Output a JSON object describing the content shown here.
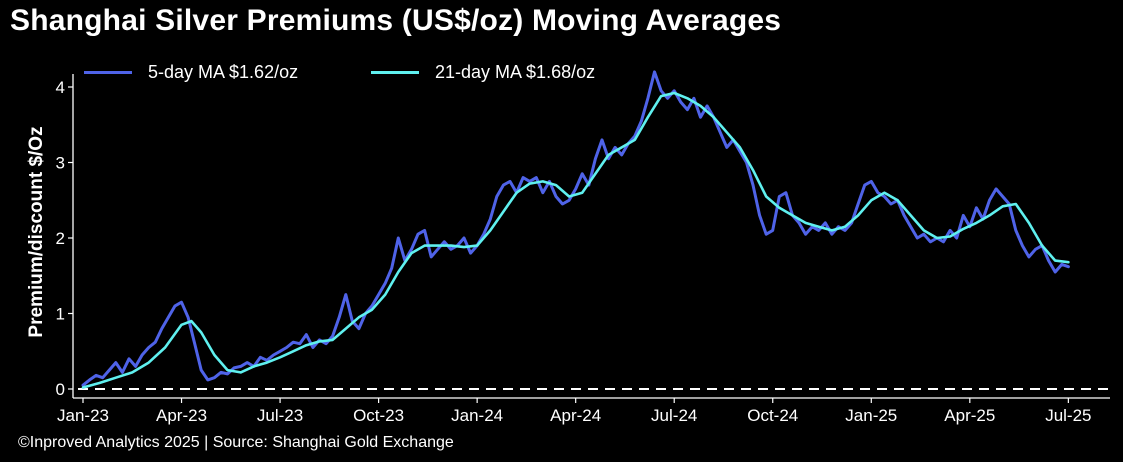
{
  "chart_data": {
    "type": "line",
    "title": "Shanghai Silver Premiums (US$/oz) Moving Averages",
    "xlabel": "",
    "ylabel": "Premium/discount $/Oz",
    "ylim": [
      0,
      4.1
    ],
    "yticks": [
      "0",
      "1",
      "2",
      "3",
      "4"
    ],
    "xlim_months": [
      0,
      31
    ],
    "xticks": [
      {
        "m": 0,
        "label": "Jan-23"
      },
      {
        "m": 3,
        "label": "Apr-23"
      },
      {
        "m": 6,
        "label": "Jul-23"
      },
      {
        "m": 9,
        "label": "Oct-23"
      },
      {
        "m": 12,
        "label": "Jan-24"
      },
      {
        "m": 15,
        "label": "Apr-24"
      },
      {
        "m": 18,
        "label": "Jul-24"
      },
      {
        "m": 21,
        "label": "Oct-24"
      },
      {
        "m": 24,
        "label": "Jan-25"
      },
      {
        "m": 27,
        "label": "Apr-25"
      },
      {
        "m": 30,
        "label": "Jul-25"
      }
    ],
    "zero_line": {
      "y": 0,
      "style": "dashed"
    },
    "legend_position": "top-left",
    "series": [
      {
        "name": "5-day MA $1.62/oz",
        "color": "#4f63e8",
        "points": [
          [
            0.0,
            0.05
          ],
          [
            0.2,
            0.12
          ],
          [
            0.4,
            0.18
          ],
          [
            0.6,
            0.15
          ],
          [
            0.8,
            0.25
          ],
          [
            1.0,
            0.35
          ],
          [
            1.2,
            0.22
          ],
          [
            1.4,
            0.4
          ],
          [
            1.6,
            0.3
          ],
          [
            1.8,
            0.45
          ],
          [
            2.0,
            0.55
          ],
          [
            2.2,
            0.62
          ],
          [
            2.4,
            0.8
          ],
          [
            2.6,
            0.95
          ],
          [
            2.8,
            1.1
          ],
          [
            3.0,
            1.15
          ],
          [
            3.2,
            0.95
          ],
          [
            3.4,
            0.6
          ],
          [
            3.6,
            0.25
          ],
          [
            3.8,
            0.12
          ],
          [
            4.0,
            0.15
          ],
          [
            4.2,
            0.22
          ],
          [
            4.4,
            0.2
          ],
          [
            4.6,
            0.28
          ],
          [
            4.8,
            0.3
          ],
          [
            5.0,
            0.35
          ],
          [
            5.2,
            0.3
          ],
          [
            5.4,
            0.42
          ],
          [
            5.6,
            0.38
          ],
          [
            5.8,
            0.45
          ],
          [
            6.0,
            0.5
          ],
          [
            6.2,
            0.55
          ],
          [
            6.4,
            0.62
          ],
          [
            6.6,
            0.6
          ],
          [
            6.8,
            0.72
          ],
          [
            7.0,
            0.55
          ],
          [
            7.2,
            0.65
          ],
          [
            7.4,
            0.6
          ],
          [
            7.6,
            0.7
          ],
          [
            7.8,
            0.95
          ],
          [
            8.0,
            1.25
          ],
          [
            8.2,
            0.9
          ],
          [
            8.4,
            0.8
          ],
          [
            8.6,
            1.0
          ],
          [
            8.8,
            1.1
          ],
          [
            9.0,
            1.25
          ],
          [
            9.2,
            1.4
          ],
          [
            9.4,
            1.6
          ],
          [
            9.6,
            2.0
          ],
          [
            9.8,
            1.7
          ],
          [
            10.0,
            1.85
          ],
          [
            10.2,
            2.05
          ],
          [
            10.4,
            2.1
          ],
          [
            10.6,
            1.75
          ],
          [
            10.8,
            1.85
          ],
          [
            11.0,
            1.95
          ],
          [
            11.2,
            1.85
          ],
          [
            11.4,
            1.9
          ],
          [
            11.6,
            2.0
          ],
          [
            11.8,
            1.8
          ],
          [
            12.0,
            1.9
          ],
          [
            12.2,
            2.05
          ],
          [
            12.4,
            2.25
          ],
          [
            12.6,
            2.55
          ],
          [
            12.8,
            2.7
          ],
          [
            13.0,
            2.75
          ],
          [
            13.2,
            2.6
          ],
          [
            13.4,
            2.8
          ],
          [
            13.6,
            2.75
          ],
          [
            13.8,
            2.8
          ],
          [
            14.0,
            2.6
          ],
          [
            14.2,
            2.75
          ],
          [
            14.4,
            2.55
          ],
          [
            14.6,
            2.45
          ],
          [
            14.8,
            2.5
          ],
          [
            15.0,
            2.65
          ],
          [
            15.2,
            2.85
          ],
          [
            15.4,
            2.7
          ],
          [
            15.6,
            3.05
          ],
          [
            15.8,
            3.3
          ],
          [
            16.0,
            3.05
          ],
          [
            16.2,
            3.2
          ],
          [
            16.4,
            3.1
          ],
          [
            16.6,
            3.25
          ],
          [
            16.8,
            3.35
          ],
          [
            17.0,
            3.55
          ],
          [
            17.2,
            3.85
          ],
          [
            17.4,
            4.2
          ],
          [
            17.6,
            3.95
          ],
          [
            17.8,
            3.85
          ],
          [
            18.0,
            3.95
          ],
          [
            18.2,
            3.8
          ],
          [
            18.4,
            3.7
          ],
          [
            18.6,
            3.85
          ],
          [
            18.8,
            3.6
          ],
          [
            19.0,
            3.75
          ],
          [
            19.2,
            3.6
          ],
          [
            19.4,
            3.4
          ],
          [
            19.6,
            3.2
          ],
          [
            19.8,
            3.3
          ],
          [
            20.0,
            3.15
          ],
          [
            20.2,
            3.0
          ],
          [
            20.4,
            2.7
          ],
          [
            20.6,
            2.3
          ],
          [
            20.8,
            2.05
          ],
          [
            21.0,
            2.1
          ],
          [
            21.2,
            2.55
          ],
          [
            21.4,
            2.6
          ],
          [
            21.6,
            2.3
          ],
          [
            21.8,
            2.2
          ],
          [
            22.0,
            2.05
          ],
          [
            22.2,
            2.15
          ],
          [
            22.4,
            2.1
          ],
          [
            22.6,
            2.2
          ],
          [
            22.8,
            2.05
          ],
          [
            23.0,
            2.15
          ],
          [
            23.2,
            2.1
          ],
          [
            23.4,
            2.2
          ],
          [
            23.6,
            2.45
          ],
          [
            23.8,
            2.7
          ],
          [
            24.0,
            2.75
          ],
          [
            24.2,
            2.6
          ],
          [
            24.4,
            2.55
          ],
          [
            24.6,
            2.45
          ],
          [
            24.8,
            2.5
          ],
          [
            25.0,
            2.3
          ],
          [
            25.2,
            2.15
          ],
          [
            25.4,
            2.0
          ],
          [
            25.6,
            2.05
          ],
          [
            25.8,
            1.95
          ],
          [
            26.0,
            2.0
          ],
          [
            26.2,
            1.95
          ],
          [
            26.4,
            2.1
          ],
          [
            26.6,
            2.0
          ],
          [
            26.8,
            2.3
          ],
          [
            27.0,
            2.15
          ],
          [
            27.2,
            2.4
          ],
          [
            27.4,
            2.25
          ],
          [
            27.6,
            2.5
          ],
          [
            27.8,
            2.65
          ],
          [
            28.0,
            2.55
          ],
          [
            28.2,
            2.45
          ],
          [
            28.4,
            2.1
          ],
          [
            28.6,
            1.9
          ],
          [
            28.8,
            1.75
          ],
          [
            29.0,
            1.85
          ],
          [
            29.2,
            1.9
          ],
          [
            29.4,
            1.7
          ],
          [
            29.6,
            1.55
          ],
          [
            29.8,
            1.65
          ],
          [
            30.0,
            1.62
          ]
        ]
      },
      {
        "name": "21-day MA $1.68/oz",
        "color": "#5ff0ef",
        "points": [
          [
            0.0,
            0.02
          ],
          [
            0.5,
            0.08
          ],
          [
            1.0,
            0.15
          ],
          [
            1.5,
            0.22
          ],
          [
            2.0,
            0.35
          ],
          [
            2.5,
            0.55
          ],
          [
            3.0,
            0.85
          ],
          [
            3.3,
            0.9
          ],
          [
            3.6,
            0.75
          ],
          [
            4.0,
            0.45
          ],
          [
            4.4,
            0.25
          ],
          [
            4.8,
            0.22
          ],
          [
            5.2,
            0.3
          ],
          [
            5.6,
            0.35
          ],
          [
            6.0,
            0.42
          ],
          [
            6.4,
            0.5
          ],
          [
            6.8,
            0.58
          ],
          [
            7.2,
            0.63
          ],
          [
            7.6,
            0.65
          ],
          [
            8.0,
            0.8
          ],
          [
            8.4,
            0.95
          ],
          [
            8.8,
            1.05
          ],
          [
            9.2,
            1.25
          ],
          [
            9.6,
            1.55
          ],
          [
            10.0,
            1.8
          ],
          [
            10.4,
            1.9
          ],
          [
            10.8,
            1.9
          ],
          [
            11.2,
            1.9
          ],
          [
            11.6,
            1.88
          ],
          [
            12.0,
            1.9
          ],
          [
            12.4,
            2.1
          ],
          [
            12.8,
            2.35
          ],
          [
            13.2,
            2.6
          ],
          [
            13.6,
            2.72
          ],
          [
            14.0,
            2.75
          ],
          [
            14.4,
            2.7
          ],
          [
            14.8,
            2.55
          ],
          [
            15.2,
            2.6
          ],
          [
            15.6,
            2.85
          ],
          [
            16.0,
            3.1
          ],
          [
            16.4,
            3.2
          ],
          [
            16.8,
            3.3
          ],
          [
            17.2,
            3.6
          ],
          [
            17.6,
            3.88
          ],
          [
            18.0,
            3.92
          ],
          [
            18.4,
            3.85
          ],
          [
            18.8,
            3.75
          ],
          [
            19.2,
            3.6
          ],
          [
            19.6,
            3.4
          ],
          [
            20.0,
            3.2
          ],
          [
            20.4,
            2.9
          ],
          [
            20.8,
            2.55
          ],
          [
            21.2,
            2.4
          ],
          [
            21.6,
            2.3
          ],
          [
            22.0,
            2.2
          ],
          [
            22.4,
            2.15
          ],
          [
            22.8,
            2.1
          ],
          [
            23.2,
            2.15
          ],
          [
            23.6,
            2.3
          ],
          [
            24.0,
            2.5
          ],
          [
            24.4,
            2.6
          ],
          [
            24.8,
            2.5
          ],
          [
            25.2,
            2.3
          ],
          [
            25.6,
            2.1
          ],
          [
            26.0,
            2.0
          ],
          [
            26.4,
            2.02
          ],
          [
            26.8,
            2.12
          ],
          [
            27.2,
            2.2
          ],
          [
            27.6,
            2.3
          ],
          [
            28.0,
            2.42
          ],
          [
            28.4,
            2.45
          ],
          [
            28.8,
            2.2
          ],
          [
            29.2,
            1.9
          ],
          [
            29.6,
            1.7
          ],
          [
            30.0,
            1.68
          ]
        ]
      }
    ]
  },
  "legend": [
    {
      "label": "5-day MA $1.62/oz",
      "color": "#4f63e8"
    },
    {
      "label": "21-day MA $1.68/oz",
      "color": "#5ff0ef"
    }
  ],
  "footer": "©Inproved Analytics 2025 | Source: Shanghai Gold Exchange"
}
